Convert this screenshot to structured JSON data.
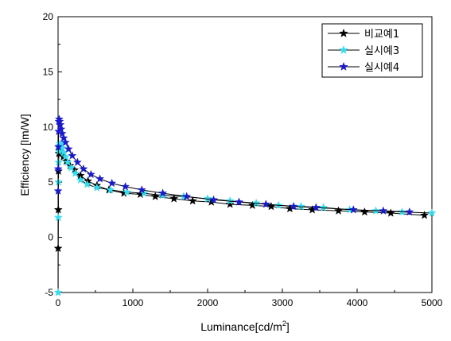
{
  "chart_data": {
    "type": "line",
    "title": "",
    "xlabel": "Luminance[cd/m",
    "xlabel_sup": "2",
    "xlabel_suffix": "]",
    "ylabel": "Efficiency [lm/W]",
    "xlim": [
      0,
      5000
    ],
    "ylim": [
      -5,
      20
    ],
    "xticks": [
      0,
      1000,
      2000,
      3000,
      4000,
      5000
    ],
    "yticks": [
      -5,
      0,
      5,
      10,
      15,
      20
    ],
    "grid": false,
    "legend_position": "top-right",
    "marker": "star",
    "series": [
      {
        "name": "비교예1",
        "color": "#000000",
        "x": [
          1,
          3,
          6,
          10,
          20,
          40,
          70,
          110,
          160,
          220,
          300,
          400,
          520,
          680,
          880,
          1100,
          1300,
          1550,
          1800,
          2050,
          2300,
          2600,
          2850,
          3100,
          3400,
          3750,
          4100,
          4450,
          4900
        ],
        "y": [
          -1.0,
          2.5,
          6.0,
          7.6,
          7.9,
          7.7,
          7.3,
          6.9,
          6.5,
          6.1,
          5.6,
          5.1,
          4.7,
          4.3,
          4.0,
          3.9,
          3.7,
          3.5,
          3.3,
          3.2,
          3.0,
          2.9,
          2.8,
          2.6,
          2.5,
          2.4,
          2.3,
          2.2,
          2.0
        ]
      },
      {
        "name": "실시예3",
        "color": "#33ddee",
        "x": [
          1,
          3,
          5,
          8,
          12,
          18,
          26,
          38,
          55,
          75,
          100,
          130,
          175,
          230,
          300,
          390,
          520,
          700,
          920,
          1150,
          1400,
          1680,
          2000,
          2300,
          2650,
          2950,
          3250,
          3550,
          3900,
          4250,
          4600,
          5000
        ],
        "y": [
          -5.0,
          1.8,
          5.0,
          6.8,
          7.8,
          8.3,
          8.5,
          8.4,
          8.1,
          7.7,
          7.3,
          6.8,
          6.3,
          5.8,
          5.2,
          4.8,
          4.5,
          4.3,
          4.1,
          4.0,
          3.8,
          3.7,
          3.5,
          3.3,
          3.1,
          2.9,
          2.8,
          2.7,
          2.5,
          2.4,
          2.3,
          2.2
        ]
      },
      {
        "name": "실시예4",
        "color": "#1a1acc",
        "x": [
          1,
          2,
          4,
          7,
          10,
          15,
          22,
          30,
          40,
          55,
          75,
          100,
          140,
          190,
          260,
          340,
          440,
          560,
          720,
          900,
          1120,
          1400,
          1720,
          2080,
          2420,
          2780,
          3150,
          3450,
          3950,
          4350,
          4700
        ],
        "y": [
          4.2,
          6.2,
          8.2,
          9.6,
          10.5,
          10.7,
          10.5,
          10.2,
          9.8,
          9.4,
          9.0,
          8.6,
          8.0,
          7.4,
          6.8,
          6.2,
          5.7,
          5.3,
          4.9,
          4.6,
          4.3,
          4.0,
          3.7,
          3.4,
          3.2,
          3.0,
          2.8,
          2.7,
          2.5,
          2.4,
          2.3
        ]
      }
    ]
  }
}
